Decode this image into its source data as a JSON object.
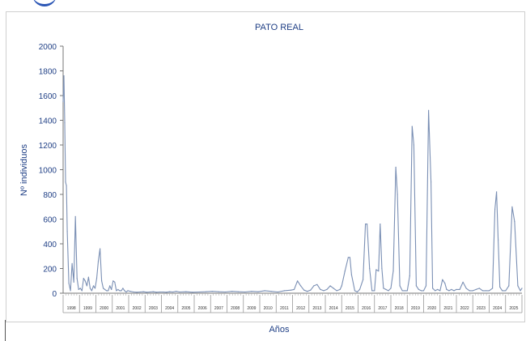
{
  "chart_data": {
    "type": "line",
    "title": "PATO REAL",
    "xlabel": "Años",
    "ylabel": "Nº individuos",
    "ylim": [
      0,
      2000
    ],
    "yticks": [
      0,
      200,
      400,
      600,
      800,
      1000,
      1200,
      1400,
      1600,
      1800,
      2000
    ],
    "grid": false,
    "legend": "none",
    "line_color": "#7a8fb4",
    "year_labels": [
      "1998",
      "1999",
      "2000",
      "2001",
      "2002",
      "2003",
      "2004",
      "2005",
      "2006",
      "2007",
      "2008",
      "2009",
      "2010",
      "2011",
      "2012",
      "2013",
      "2014",
      "2015",
      "2016",
      "2017",
      "2018",
      "2019",
      "2020",
      "2021",
      "2022",
      "2023",
      "2024",
      "2025"
    ],
    "x": [
      1998.0,
      1998.05,
      1998.1,
      1998.15,
      1998.2,
      1998.25,
      1998.35,
      1998.45,
      1998.55,
      1998.65,
      1998.75,
      1998.85,
      1998.95,
      1999.05,
      1999.15,
      1999.25,
      1999.35,
      1999.45,
      1999.55,
      1999.65,
      1999.75,
      1999.85,
      1999.95,
      2000.05,
      2000.15,
      2000.25,
      2000.35,
      2000.45,
      2000.55,
      2000.65,
      2000.75,
      2000.85,
      2000.95,
      2001.05,
      2001.15,
      2001.25,
      2001.35,
      2001.45,
      2001.55,
      2001.65,
      2001.75,
      2001.85,
      2001.95,
      2002.1,
      2002.3,
      2002.5,
      2002.7,
      2002.9,
      2003.1,
      2003.3,
      2003.5,
      2003.7,
      2003.9,
      2004.1,
      2004.3,
      2004.5,
      2004.7,
      2004.9,
      2005.1,
      2005.5,
      2005.9,
      2006.3,
      2006.7,
      2007.1,
      2007.5,
      2007.9,
      2008.3,
      2008.7,
      2009.1,
      2009.5,
      2009.9,
      2010.3,
      2010.7,
      2011.1,
      2011.5,
      2011.9,
      2012.1,
      2012.3,
      2012.5,
      2012.7,
      2012.9,
      2013.1,
      2013.3,
      2013.5,
      2013.7,
      2013.9,
      2014.1,
      2014.3,
      2014.5,
      2014.7,
      2014.9,
      2015.0,
      2015.2,
      2015.4,
      2015.5,
      2015.6,
      2015.8,
      2015.95,
      2016.1,
      2016.3,
      2016.45,
      2016.55,
      2016.7,
      2016.85,
      2017.0,
      2017.1,
      2017.25,
      2017.35,
      2017.45,
      2017.55,
      2017.7,
      2017.85,
      2018.0,
      2018.15,
      2018.3,
      2018.4,
      2018.55,
      2018.7,
      2018.85,
      2019.0,
      2019.15,
      2019.3,
      2019.4,
      2019.55,
      2019.7,
      2019.85,
      2020.0,
      2020.15,
      2020.3,
      2020.45,
      2020.55,
      2020.7,
      2020.85,
      2021.0,
      2021.15,
      2021.3,
      2021.4,
      2021.55,
      2021.7,
      2021.85,
      2022.0,
      2022.2,
      2022.4,
      2022.6,
      2022.8,
      2023.0,
      2023.2,
      2023.4,
      2023.6,
      2023.8,
      2024.0,
      2024.2,
      2024.35,
      2024.45,
      2024.55,
      2024.65,
      2024.8,
      2025.0,
      2025.2,
      2025.4,
      2025.55,
      2025.75,
      2025.9,
      2026.0
    ],
    "y": [
      1550,
      1760,
      1380,
      900,
      870,
      500,
      80,
      20,
      240,
      90,
      620,
      120,
      30,
      40,
      20,
      120,
      100,
      60,
      130,
      40,
      20,
      60,
      40,
      120,
      260,
      360,
      100,
      40,
      30,
      20,
      20,
      60,
      30,
      100,
      90,
      20,
      30,
      20,
      20,
      40,
      20,
      10,
      20,
      15,
      10,
      8,
      10,
      12,
      8,
      10,
      12,
      8,
      10,
      10,
      8,
      12,
      10,
      15,
      10,
      12,
      8,
      10,
      12,
      15,
      12,
      10,
      15,
      12,
      10,
      15,
      12,
      20,
      15,
      10,
      20,
      25,
      30,
      100,
      60,
      25,
      15,
      25,
      60,
      70,
      30,
      20,
      30,
      60,
      40,
      20,
      30,
      60,
      180,
      290,
      290,
      150,
      20,
      10,
      30,
      110,
      560,
      560,
      200,
      20,
      20,
      190,
      180,
      560,
      200,
      40,
      30,
      20,
      40,
      180,
      1020,
      800,
      60,
      20,
      20,
      20,
      140,
      1350,
      1200,
      60,
      30,
      20,
      20,
      60,
      1480,
      900,
      40,
      20,
      30,
      20,
      110,
      80,
      30,
      20,
      30,
      20,
      30,
      30,
      90,
      40,
      20,
      20,
      30,
      40,
      20,
      20,
      20,
      40,
      680,
      820,
      430,
      50,
      20,
      20,
      60,
      700,
      580,
      60,
      20,
      40
    ]
  }
}
